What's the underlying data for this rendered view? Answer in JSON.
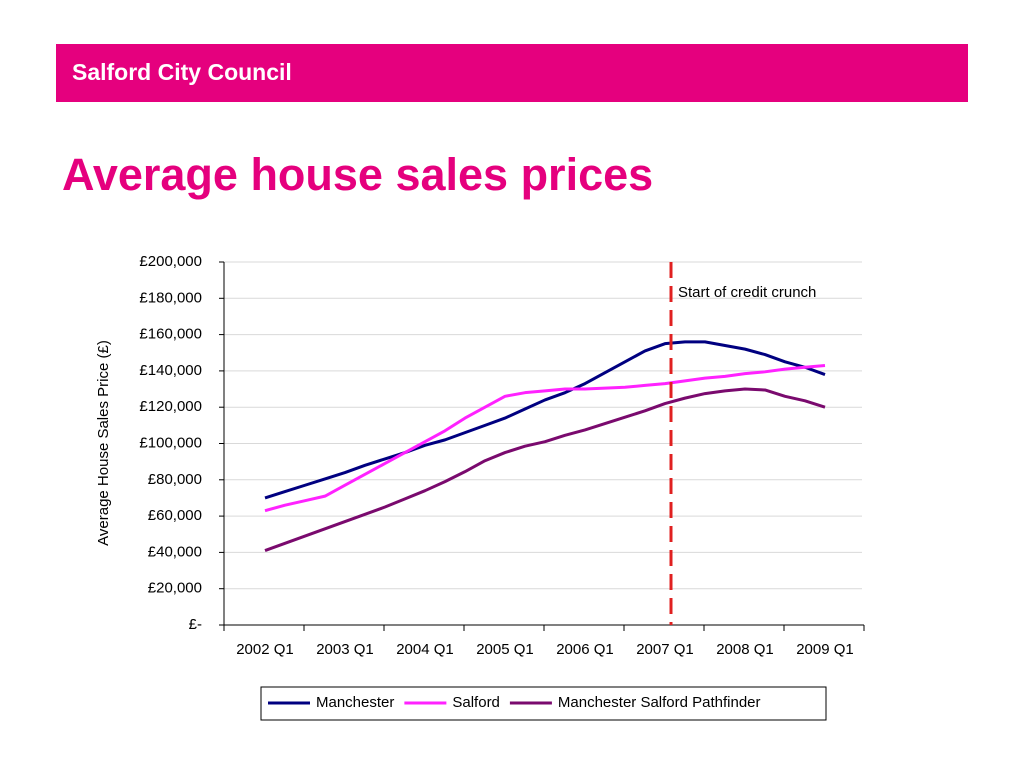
{
  "header": "Salford City Council",
  "chart_data": {
    "type": "line",
    "title": "Average house sales prices",
    "y_label": "Average House Sales Price (£)",
    "categories": [
      "2002 Q1",
      null,
      null,
      null,
      "2003 Q1",
      null,
      null,
      null,
      "2004 Q1",
      null,
      null,
      null,
      "2005 Q1",
      null,
      null,
      null,
      "2006 Q1",
      null,
      null,
      null,
      "2007 Q1",
      null,
      null,
      null,
      "2008 Q1",
      null,
      null,
      null,
      "2009 Q1"
    ],
    "series": [
      {
        "name": "Manchester",
        "color": "#000080",
        "values": [
          70000,
          73500,
          77000,
          80500,
          84000,
          88000,
          91500,
          95000,
          99000,
          102000,
          106000,
          110000,
          114000,
          119000,
          124000,
          128000,
          133000,
          139000,
          145000,
          151000,
          155000,
          156000,
          156000,
          154000,
          152000,
          149000,
          145000,
          142000,
          138000
        ]
      },
      {
        "name": "Salford",
        "color": "#ff22ff",
        "values": [
          63000,
          66000,
          68500,
          71000,
          77000,
          83000,
          89000,
          95000,
          101000,
          107000,
          114000,
          120000,
          126000,
          128000,
          129000,
          130000,
          130000,
          130500,
          131000,
          132000,
          133000,
          134500,
          136000,
          137000,
          138500,
          139500,
          141000,
          142000,
          143000
        ]
      },
      {
        "name": "Manchester Salford Pathfinder",
        "color": "#7a0a6e",
        "values": [
          41000,
          45000,
          49000,
          53000,
          57000,
          61000,
          65000,
          69500,
          74000,
          79000,
          84500,
          90500,
          95000,
          98500,
          101000,
          104500,
          107500,
          111000,
          114500,
          118000,
          122000,
          125000,
          127500,
          129000,
          130000,
          129500,
          126000,
          123500,
          120000
        ]
      }
    ],
    "ylim": [
      0,
      200000
    ],
    "yticks": [
      {
        "value": 0,
        "label": "£-"
      },
      {
        "value": 20000,
        "label": "£20,000"
      },
      {
        "value": 40000,
        "label": "£40,000"
      },
      {
        "value": 60000,
        "label": "£60,000"
      },
      {
        "value": 80000,
        "label": "£80,000"
      },
      {
        "value": 100000,
        "label": "£100,000"
      },
      {
        "value": 120000,
        "label": "£120,000"
      },
      {
        "value": 140000,
        "label": "£140,000"
      },
      {
        "value": 160000,
        "label": "£160,000"
      },
      {
        "value": 180000,
        "label": "£180,000"
      },
      {
        "value": 200000,
        "label": "£200,000"
      }
    ],
    "grid": true,
    "legend": "bottom",
    "annotation": {
      "text": "Start of credit crunch",
      "x": 20.3,
      "color": "#e02020"
    }
  }
}
